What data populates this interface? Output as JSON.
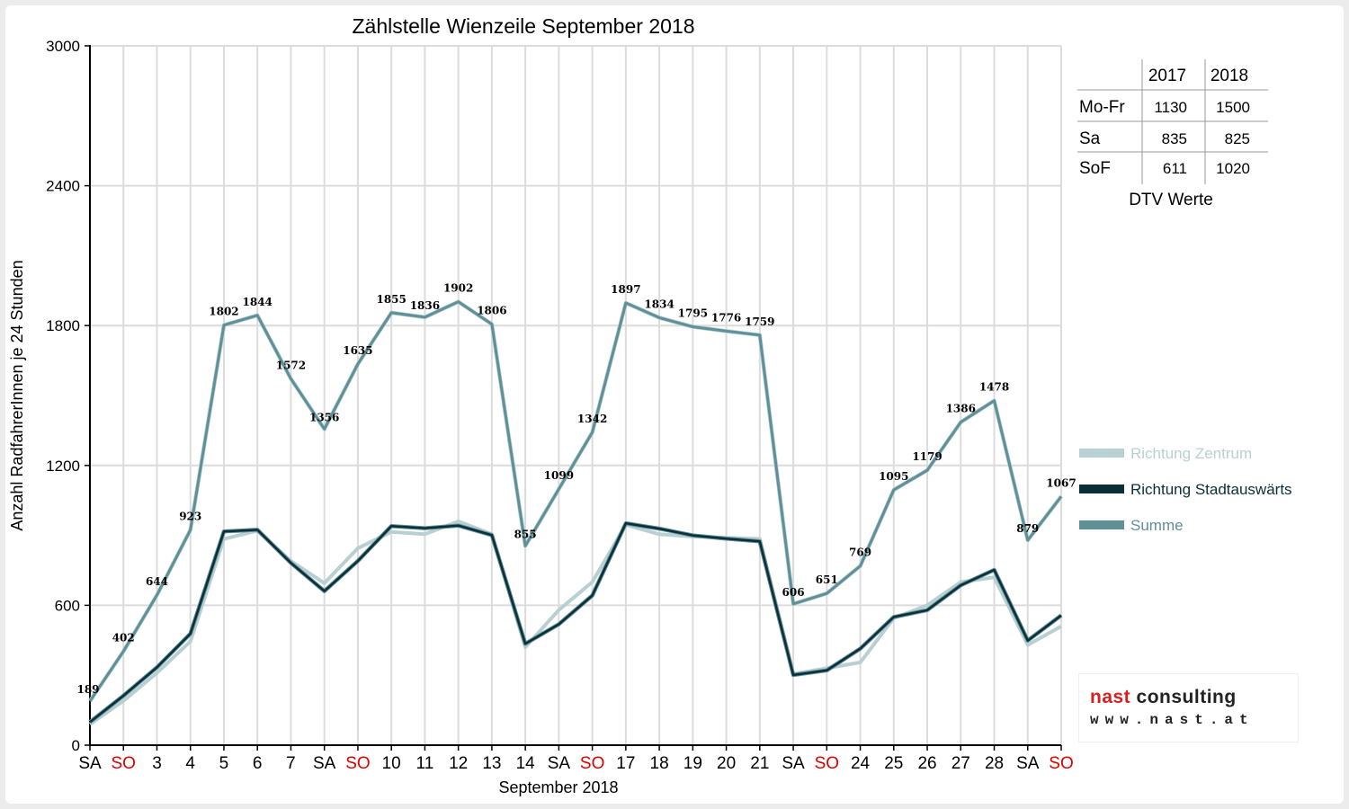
{
  "chart_data": {
    "type": "line",
    "title": "Zählstelle Wienzeile September 2018",
    "xlabel": "September 2018",
    "ylabel": "Anzahl RadfahrerInnen je 24 Stunden",
    "ylim": [
      0,
      3000
    ],
    "yticks": [
      "0",
      "600",
      "1200",
      "1800",
      "2400",
      "3000"
    ],
    "grid": true,
    "legend_position": "right",
    "categories": [
      "SA",
      "SO",
      "3",
      "4",
      "5",
      "6",
      "7",
      "SA",
      "SO",
      "10",
      "11",
      "12",
      "13",
      "14",
      "SA",
      "SO",
      "17",
      "18",
      "19",
      "20",
      "21",
      "SA",
      "SO",
      "24",
      "25",
      "26",
      "27",
      "28",
      "SA",
      "SO"
    ],
    "category_colors": [
      "#000000",
      "#e00000",
      "#000000",
      "#000000",
      "#000000",
      "#000000",
      "#000000",
      "#000000",
      "#e00000",
      "#000000",
      "#000000",
      "#000000",
      "#000000",
      "#000000",
      "#000000",
      "#e00000",
      "#000000",
      "#000000",
      "#000000",
      "#000000",
      "#000000",
      "#000000",
      "#e00000",
      "#000000",
      "#000000",
      "#000000",
      "#000000",
      "#000000",
      "#000000",
      "#e00000"
    ],
    "series": [
      {
        "name": "Richtung Zentrum",
        "color": "#b8d0d2",
        "values": [
          90,
          190,
          310,
          445,
          885,
          920,
          790,
          695,
          845,
          915,
          905,
          960,
          905,
          420,
          580,
          700,
          945,
          905,
          895,
          890,
          885,
          305,
          330,
          355,
          545,
          600,
          700,
          720,
          430,
          510
        ]
      },
      {
        "name": "Richtung Stadtauswärts",
        "color": "#0b2e38",
        "values": [
          99,
          212,
          334,
          478,
          917,
          924,
          782,
          661,
          790,
          940,
          931,
          942,
          901,
          435,
          519,
          642,
          952,
          929,
          900,
          886,
          874,
          301,
          321,
          414,
          550,
          579,
          686,
          752,
          449,
          557
        ]
      },
      {
        "name": "Summe",
        "color": "#5f8f98",
        "values": [
          189,
          402,
          644,
          923,
          1802,
          1844,
          1572,
          1356,
          1635,
          1855,
          1836,
          1902,
          1806,
          855,
          1099,
          1342,
          1897,
          1834,
          1795,
          1776,
          1759,
          606,
          651,
          769,
          1095,
          1179,
          1386,
          1478,
          879,
          1067
        ],
        "labels": [
          "189",
          "402",
          "644",
          "923",
          "1802",
          "1844",
          "1572",
          "1356",
          "1635",
          "1855",
          "1836",
          "1902",
          "1806",
          "855",
          "1099",
          "1342",
          "1897",
          "1834",
          "1795",
          "1776",
          "1759",
          "606",
          "651",
          "769",
          "1095",
          "1179",
          "1386",
          "1478",
          "879",
          "1067"
        ]
      }
    ]
  },
  "dtv_table": {
    "headers": [
      "2017",
      "2018"
    ],
    "rows": [
      {
        "label": "Mo-Fr",
        "v2017": "1130",
        "v2018": "1500"
      },
      {
        "label": "Sa",
        "v2017": "835",
        "v2018": "825"
      },
      {
        "label": "SoF",
        "v2017": "611",
        "v2018": "1020"
      }
    ],
    "caption": "DTV Werte"
  },
  "logo": {
    "name_part1": "nast",
    "name_part2": "consulting",
    "url": "www.nast.at"
  }
}
